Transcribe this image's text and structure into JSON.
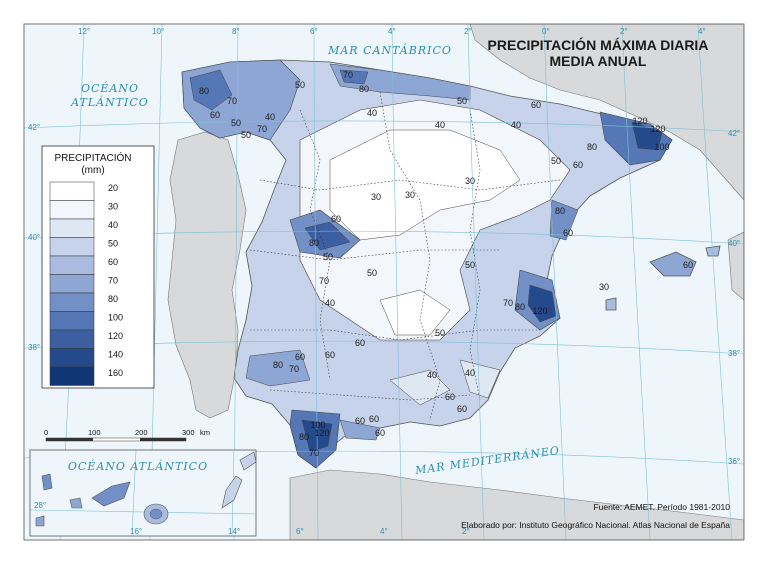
{
  "title": {
    "line1": "PRECIPITACIÓN MÁXIMA DIARIA",
    "line2": "MEDIA ANUAL"
  },
  "seas": {
    "cantabrico": "MAR CANTÁBRICO",
    "oceano_line1": "OCÉANO",
    "oceano_line2": "ATLÁNTICO",
    "mediterraneo": "MAR MEDITERRÁNEO",
    "canarias": "OCÉANO ATLÁNTICO"
  },
  "graticule": {
    "longitudes_top": [
      "12°",
      "10°",
      "8°",
      "6°",
      "4°",
      "2°",
      "0°",
      "2°",
      "4°"
    ],
    "longitudes_bottom": [
      "6°",
      "4°",
      "2°"
    ],
    "latitudes_left": [
      "42°",
      "40°",
      "38°"
    ],
    "latitudes_right": [
      "42°",
      "40°",
      "38°",
      "36°"
    ],
    "canarias_lon": [
      "16°",
      "14°"
    ],
    "canarias_lat": "28°"
  },
  "legend": {
    "title_line1": "PRECIPITACIÓN",
    "title_line2": "(mm)",
    "classes": [
      {
        "value": "20",
        "color": "#ffffff"
      },
      {
        "value": "30",
        "color": "#f3f6fb"
      },
      {
        "value": "40",
        "color": "#dfe7f3"
      },
      {
        "value": "50",
        "color": "#c6d3ea"
      },
      {
        "value": "60",
        "color": "#a9bcdf"
      },
      {
        "value": "70",
        "color": "#8ea6d3"
      },
      {
        "value": "80",
        "color": "#7290c6"
      },
      {
        "value": "100",
        "color": "#5677b6"
      },
      {
        "value": "120",
        "color": "#3d5fa1"
      },
      {
        "value": "140",
        "color": "#254a8c"
      },
      {
        "value": "160",
        "color": "#103676"
      }
    ]
  },
  "scale_bar": {
    "ticks": [
      "0",
      "100",
      "200",
      "300"
    ],
    "unit": "km"
  },
  "isoline_labels": [
    "80",
    "60",
    "70",
    "50",
    "70",
    "50",
    "40",
    "50",
    "70",
    "80",
    "40",
    "40",
    "50",
    "30",
    "30",
    "60",
    "40",
    "50",
    "60",
    "80",
    "120",
    "120",
    "100",
    "30",
    "80",
    "60",
    "50",
    "70",
    "40",
    "50",
    "60",
    "50",
    "50",
    "80",
    "60",
    "60",
    "70",
    "100",
    "120",
    "60",
    "40",
    "40",
    "60",
    "60",
    "70",
    "120",
    "80",
    "60",
    "80",
    "60",
    "60",
    "80",
    "70",
    "30",
    "60"
  ],
  "source": "Fuente: AEMET. Período 1981-2010",
  "credit": "Elaborado por: Instituto Geográfico Nacional. Atlas Nacional de España",
  "colors": {
    "sea": "#eef6fb",
    "neighbor_land": "#d8d9da",
    "graticule": "#7cc0d8",
    "coast": "#555555"
  }
}
